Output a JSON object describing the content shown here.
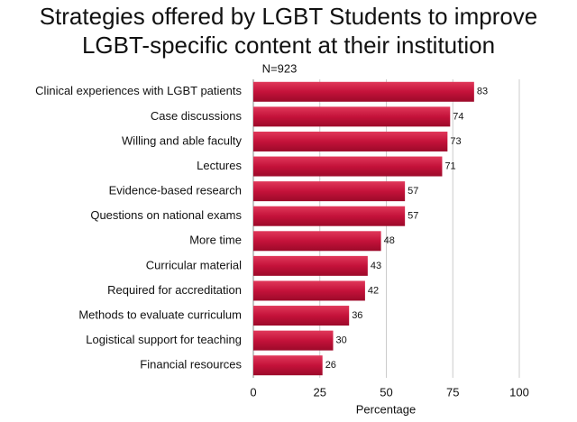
{
  "chart_data": {
    "type": "bar",
    "orientation": "horizontal",
    "title": "Strategies offered by LGBT Students to improve LGBT-specific content at their institution",
    "subtitle": "N=923",
    "x_label": "Percentage",
    "categories": [
      "Clinical experiences with LGBT patients",
      "Case discussions",
      "Willing and able faculty",
      "Lectures",
      "Evidence-based research",
      "Questions on national exams",
      "More time",
      "Curricular material",
      "Required for accreditation",
      "Methods to evaluate curriculum",
      "Logistical support for teaching",
      "Financial resources"
    ],
    "values": [
      83,
      74,
      73,
      71,
      57,
      57,
      48,
      43,
      42,
      36,
      30,
      26
    ],
    "color": "#c4123a",
    "xlim": [
      0,
      100
    ],
    "xticks": [
      0,
      25,
      50,
      75,
      100
    ],
    "grid": true
  }
}
